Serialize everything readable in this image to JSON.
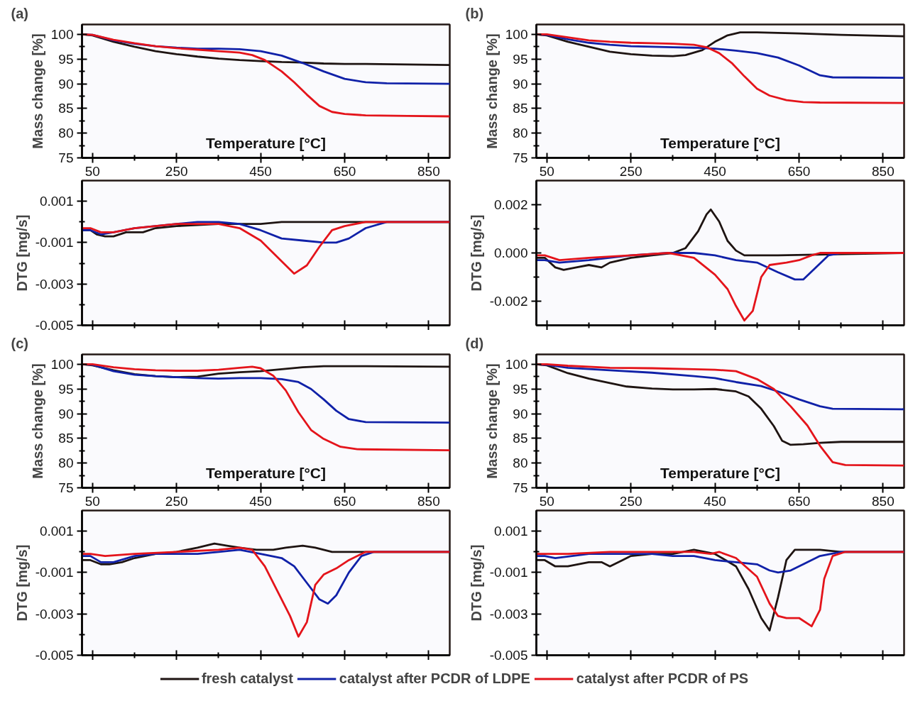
{
  "chart_data": [
    {
      "type": "line",
      "title": "(a)",
      "xlabel": "Temperature [°C]",
      "ylabel": "Mass change [%]",
      "xlim": [
        25,
        900
      ],
      "xticks": [
        50,
        {
          "value": 150,
          "label": null
        },
        250,
        {
          "value": 350,
          "label": null
        },
        450,
        {
          "value": 550,
          "label": null
        },
        650,
        {
          "value": 750,
          "label": null
        },
        850
      ],
      "ylim": [
        75,
        102
      ],
      "yticks": [
        75,
        {
          "value": 77.5,
          "label": null
        },
        80,
        {
          "value": 82.5,
          "label": null
        },
        85,
        {
          "value": 87.5,
          "label": null
        },
        90,
        {
          "value": 92.5,
          "label": null
        },
        95,
        {
          "value": 97.5,
          "label": null
        },
        100
      ],
      "series": [
        {
          "color": "#1e1412",
          "x": [
            25,
            50,
            100,
            150,
            200,
            250,
            300,
            350,
            400,
            450,
            500,
            550,
            600,
            650,
            700,
            800,
            900
          ],
          "values": [
            100,
            99.8,
            98.5,
            97.5,
            96.6,
            96.0,
            95.5,
            95.1,
            94.8,
            94.6,
            94.4,
            94.3,
            94.1,
            94.0,
            94.0,
            93.9,
            93.8
          ]
        },
        {
          "color": "#1021a8",
          "x": [
            25,
            50,
            100,
            150,
            200,
            250,
            300,
            350,
            400,
            450,
            500,
            550,
            600,
            650,
            700,
            750,
            900
          ],
          "values": [
            100,
            99.9,
            98.8,
            98.1,
            97.6,
            97.3,
            97.1,
            97.1,
            97.0,
            96.6,
            95.7,
            94.2,
            92.5,
            91.0,
            90.3,
            90.1,
            90.0
          ]
        },
        {
          "color": "#e4141b",
          "x": [
            25,
            50,
            100,
            150,
            200,
            250,
            300,
            350,
            400,
            430,
            460,
            500,
            530,
            560,
            590,
            620,
            650,
            700,
            800,
            900
          ],
          "values": [
            100,
            99.9,
            98.9,
            98.2,
            97.6,
            97.2,
            96.9,
            96.6,
            96.3,
            95.8,
            94.8,
            92.5,
            90.3,
            87.8,
            85.5,
            84.3,
            83.9,
            83.6,
            83.5,
            83.4
          ]
        }
      ]
    },
    {
      "type": "line",
      "ylabel": "DTG [mg/s]",
      "tick_labels": "y",
      "xlim": [
        25,
        900
      ],
      "xticks": [
        50,
        {
          "value": 150,
          "label": null
        },
        250,
        {
          "value": 350,
          "label": null
        },
        450,
        {
          "value": 550,
          "label": null
        },
        650,
        {
          "value": 750,
          "label": null
        },
        850
      ],
      "ylim": [
        -0.005,
        0.002
      ],
      "yticks": [
        -0.005,
        {
          "value": -0.004,
          "label": null
        },
        -0.003,
        {
          "value": -0.002,
          "label": null
        },
        -0.001,
        {
          "value": 0,
          "label": null
        },
        0.001
      ],
      "series": [
        {
          "color": "#1e1412",
          "x": [
            25,
            45,
            60,
            80,
            100,
            130,
            170,
            200,
            250,
            300,
            350,
            400,
            450,
            500,
            600,
            900
          ],
          "values": [
            -0.0004,
            -0.0004,
            -0.0006,
            -0.0007,
            -0.0007,
            -0.0005,
            -0.0005,
            -0.0003,
            -0.0002,
            -0.00015,
            -0.0001,
            -0.0001,
            -0.0001,
            0,
            0,
            0
          ]
        },
        {
          "color": "#1021a8",
          "x": [
            25,
            45,
            70,
            100,
            150,
            200,
            250,
            300,
            350,
            400,
            450,
            500,
            550,
            600,
            630,
            660,
            700,
            750,
            900
          ],
          "values": [
            -0.0004,
            -0.0004,
            -0.0006,
            -0.0005,
            -0.0003,
            -0.0002,
            -0.0001,
            0,
            0,
            -0.0001,
            -0.0004,
            -0.0008,
            -0.0009,
            -0.001,
            -0.001,
            -0.0008,
            -0.0003,
            0,
            0
          ]
        },
        {
          "color": "#e4141b",
          "x": [
            25,
            45,
            70,
            100,
            150,
            200,
            250,
            300,
            350,
            400,
            450,
            500,
            530,
            560,
            590,
            620,
            650,
            700,
            900
          ],
          "values": [
            -0.0003,
            -0.0003,
            -0.0005,
            -0.0005,
            -0.0003,
            -0.0002,
            -0.0001,
            -0.0001,
            -0.0001,
            -0.0003,
            -0.0009,
            -0.0019,
            -0.0025,
            -0.0021,
            -0.0012,
            -0.0004,
            -0.0002,
            0,
            0
          ]
        }
      ]
    },
    {
      "type": "line",
      "title": "(b)",
      "xlabel": "Temperature [°C]",
      "ylabel": "Mass change [%]",
      "xlim": [
        25,
        900
      ],
      "xticks": [
        50,
        {
          "value": 150,
          "label": null
        },
        250,
        {
          "value": 350,
          "label": null
        },
        450,
        {
          "value": 550,
          "label": null
        },
        650,
        {
          "value": 750,
          "label": null
        },
        850
      ],
      "ylim": [
        75,
        102
      ],
      "yticks": [
        75,
        {
          "value": 77.5,
          "label": null
        },
        80,
        {
          "value": 82.5,
          "label": null
        },
        85,
        {
          "value": 87.5,
          "label": null
        },
        90,
        {
          "value": 92.5,
          "label": null
        },
        95,
        {
          "value": 97.5,
          "label": null
        },
        100
      ],
      "series": [
        {
          "color": "#1e1412",
          "x": [
            25,
            50,
            100,
            150,
            200,
            250,
            300,
            350,
            380,
            420,
            450,
            480,
            510,
            550,
            650,
            750,
            900
          ],
          "values": [
            100,
            99.8,
            98.5,
            97.5,
            96.5,
            96.0,
            95.7,
            95.6,
            95.8,
            96.8,
            98.5,
            99.8,
            100.4,
            100.4,
            100.2,
            99.9,
            99.6
          ]
        },
        {
          "color": "#1021a8",
          "x": [
            25,
            50,
            100,
            150,
            200,
            250,
            300,
            350,
            400,
            450,
            500,
            550,
            600,
            650,
            700,
            730,
            900
          ],
          "values": [
            100,
            99.9,
            99.0,
            98.3,
            97.9,
            97.6,
            97.5,
            97.4,
            97.3,
            97.1,
            96.7,
            96.2,
            95.3,
            93.7,
            91.7,
            91.3,
            91.2
          ]
        },
        {
          "color": "#e4141b",
          "x": [
            25,
            50,
            100,
            150,
            200,
            250,
            300,
            350,
            400,
            430,
            460,
            490,
            520,
            550,
            580,
            620,
            660,
            700,
            900
          ],
          "values": [
            100,
            100,
            99.4,
            98.8,
            98.5,
            98.3,
            98.2,
            98.1,
            97.9,
            97.4,
            96.2,
            94.2,
            91.5,
            89.0,
            87.6,
            86.7,
            86.3,
            86.2,
            86.1
          ]
        }
      ]
    },
    {
      "type": "line",
      "ylabel": "DTG [mg/s]",
      "tick_labels": "y",
      "xlim": [
        25,
        900
      ],
      "xticks": [
        50,
        {
          "value": 150,
          "label": null
        },
        250,
        {
          "value": 350,
          "label": null
        },
        450,
        {
          "value": 550,
          "label": null
        },
        650,
        {
          "value": 750,
          "label": null
        },
        850
      ],
      "ylim": [
        -0.003,
        0.003
      ],
      "yticks": [
        -0.002,
        {
          "value": -0.001,
          "label": null
        },
        {
          "value": 0,
          "label": "0.000"
        },
        {
          "value": 0.001,
          "label": null
        },
        0.002
      ],
      "series": [
        {
          "color": "#1e1412",
          "x": [
            25,
            45,
            70,
            90,
            120,
            150,
            180,
            200,
            250,
            300,
            350,
            380,
            410,
            430,
            440,
            460,
            480,
            500,
            520,
            600,
            900
          ],
          "values": [
            -0.0002,
            -0.0002,
            -0.0006,
            -0.0007,
            -0.0006,
            -0.0005,
            -0.0006,
            -0.0004,
            -0.0002,
            -0.0001,
            0,
            0.0002,
            0.0009,
            0.0016,
            0.0018,
            0.0013,
            0.0005,
            0.0001,
            -0.0001,
            -0.0001,
            0
          ]
        },
        {
          "color": "#1021a8",
          "x": [
            25,
            45,
            80,
            150,
            250,
            340,
            400,
            450,
            500,
            550,
            600,
            640,
            660,
            690,
            720,
            750,
            900
          ],
          "values": [
            -0.0003,
            -0.0003,
            -0.0004,
            -0.0003,
            -0.0001,
            0,
            0,
            -0.0001,
            -0.0003,
            -0.0004,
            -0.0008,
            -0.0011,
            -0.0011,
            -0.0006,
            -0.0001,
            0,
            0
          ]
        },
        {
          "color": "#e4141b",
          "x": [
            25,
            45,
            80,
            150,
            250,
            340,
            400,
            450,
            480,
            500,
            520,
            540,
            560,
            580,
            620,
            650,
            680,
            700,
            900
          ],
          "values": [
            -0.0001,
            -0.0001,
            -0.0003,
            -0.0002,
            -0.0001,
            0,
            -0.0002,
            -0.0009,
            -0.0015,
            -0.0022,
            -0.0028,
            -0.0024,
            -0.001,
            -0.0005,
            -0.0004,
            -0.0003,
            -0.0001,
            0,
            0
          ]
        }
      ]
    },
    {
      "type": "line",
      "title": "(c)",
      "xlabel": "Temperature [°C]",
      "ylabel": "Mass change [%]",
      "xlim": [
        25,
        900
      ],
      "xticks": [
        50,
        {
          "value": 150,
          "label": null
        },
        250,
        {
          "value": 350,
          "label": null
        },
        450,
        {
          "value": 550,
          "label": null
        },
        650,
        {
          "value": 750,
          "label": null
        },
        850
      ],
      "ylim": [
        75,
        102
      ],
      "yticks": [
        75,
        {
          "value": 77.5,
          "label": null
        },
        80,
        {
          "value": 82.5,
          "label": null
        },
        85,
        {
          "value": 87.5,
          "label": null
        },
        90,
        {
          "value": 92.5,
          "label": null
        },
        95,
        {
          "value": 97.5,
          "label": null
        },
        100
      ],
      "series": [
        {
          "color": "#1e1412",
          "x": [
            25,
            50,
            100,
            150,
            200,
            250,
            300,
            350,
            400,
            450,
            500,
            550,
            600,
            700,
            900
          ],
          "values": [
            100,
            99.8,
            98.8,
            98.0,
            97.6,
            97.4,
            97.5,
            98.1,
            98.4,
            98.6,
            99.0,
            99.4,
            99.6,
            99.6,
            99.5
          ]
        },
        {
          "color": "#1021a8",
          "x": [
            25,
            50,
            100,
            150,
            200,
            250,
            300,
            350,
            400,
            450,
            500,
            540,
            570,
            600,
            630,
            660,
            700,
            900
          ],
          "values": [
            100,
            99.9,
            98.6,
            97.9,
            97.6,
            97.4,
            97.2,
            97.1,
            97.2,
            97.2,
            97.0,
            96.4,
            95.0,
            92.9,
            90.6,
            88.9,
            88.3,
            88.2
          ]
        },
        {
          "color": "#e4141b",
          "x": [
            25,
            50,
            100,
            150,
            200,
            250,
            300,
            350,
            400,
            430,
            450,
            480,
            510,
            540,
            570,
            600,
            640,
            680,
            900
          ],
          "values": [
            100,
            100,
            99.4,
            99.0,
            98.8,
            98.7,
            98.7,
            98.9,
            99.3,
            99.5,
            99.2,
            97.7,
            94.7,
            90.3,
            86.7,
            84.9,
            83.3,
            82.8,
            82.6
          ]
        }
      ]
    },
    {
      "type": "line",
      "ylabel": "DTG [mg/s]",
      "tick_labels": "y",
      "xlim": [
        25,
        900
      ],
      "xticks": [
        50,
        {
          "value": 150,
          "label": null
        },
        250,
        {
          "value": 350,
          "label": null
        },
        450,
        {
          "value": 550,
          "label": null
        },
        650,
        {
          "value": 750,
          "label": null
        },
        850
      ],
      "ylim": [
        -0.005,
        0.002
      ],
      "yticks": [
        -0.005,
        {
          "value": -0.004,
          "label": null
        },
        -0.003,
        {
          "value": -0.002,
          "label": null
        },
        -0.001,
        {
          "value": 0,
          "label": null
        },
        0.001
      ],
      "series": [
        {
          "color": "#1e1412",
          "x": [
            25,
            45,
            70,
            90,
            120,
            150,
            200,
            250,
            300,
            340,
            370,
            400,
            440,
            480,
            510,
            550,
            580,
            620,
            700,
            900
          ],
          "values": [
            -0.0004,
            -0.0004,
            -0.0006,
            -0.0006,
            -0.0005,
            -0.0003,
            -0.0001,
            0,
            0.0002,
            0.0004,
            0.0003,
            0.0002,
            0.0001,
            0.0001,
            0.0002,
            0.0003,
            0.0002,
            0,
            0,
            0
          ]
        },
        {
          "color": "#1021a8",
          "x": [
            25,
            45,
            70,
            100,
            150,
            200,
            300,
            350,
            400,
            450,
            500,
            530,
            560,
            590,
            610,
            630,
            660,
            690,
            720,
            900
          ],
          "values": [
            -0.0002,
            -0.0002,
            -0.0005,
            -0.0005,
            -0.0002,
            -0.0001,
            -0.0001,
            0,
            0.0001,
            -0.0001,
            -0.0003,
            -0.0007,
            -0.0015,
            -0.0023,
            -0.0025,
            -0.0021,
            -0.001,
            -0.0002,
            0,
            0
          ]
        },
        {
          "color": "#e4141b",
          "x": [
            25,
            45,
            80,
            150,
            250,
            350,
            400,
            430,
            460,
            490,
            520,
            540,
            560,
            580,
            600,
            630,
            660,
            700,
            900
          ],
          "values": [
            -0.0001,
            -0.0001,
            -0.0002,
            -0.0001,
            0,
            0.0001,
            0.0002,
            0.0001,
            -0.0007,
            -0.0019,
            -0.0031,
            -0.0041,
            -0.0034,
            -0.0016,
            -0.0011,
            -0.0008,
            -0.0004,
            0,
            0
          ]
        }
      ]
    },
    {
      "type": "line",
      "title": "(d)",
      "xlabel": "Temperature [°C]",
      "ylabel": "Mass change [%]",
      "xlim": [
        25,
        900
      ],
      "xticks": [
        50,
        {
          "value": 150,
          "label": null
        },
        250,
        {
          "value": 350,
          "label": null
        },
        450,
        {
          "value": 550,
          "label": null
        },
        650,
        {
          "value": 750,
          "label": null
        },
        850
      ],
      "ylim": [
        75,
        102
      ],
      "yticks": [
        75,
        {
          "value": 77.5,
          "label": null
        },
        80,
        {
          "value": 82.5,
          "label": null
        },
        85,
        {
          "value": 87.5,
          "label": null
        },
        90,
        {
          "value": 92.5,
          "label": null
        },
        95,
        {
          "value": 97.5,
          "label": null
        },
        100
      ],
      "series": [
        {
          "color": "#1e1412",
          "x": [
            25,
            50,
            100,
            150,
            200,
            240,
            300,
            350,
            400,
            450,
            500,
            530,
            560,
            590,
            610,
            630,
            660,
            700,
            750,
            900
          ],
          "values": [
            100,
            99.8,
            98.2,
            97.1,
            96.2,
            95.5,
            95.1,
            94.9,
            94.9,
            95.0,
            94.5,
            93.5,
            91.0,
            87.5,
            84.5,
            83.7,
            83.8,
            84.1,
            84.3,
            84.3
          ]
        },
        {
          "color": "#1021a8",
          "x": [
            25,
            50,
            100,
            200,
            300,
            400,
            450,
            500,
            560,
            600,
            650,
            700,
            730,
            900
          ],
          "values": [
            100,
            99.9,
            99.3,
            98.8,
            98.3,
            97.6,
            97.2,
            96.4,
            95.6,
            94.5,
            92.9,
            91.5,
            91.0,
            90.9
          ]
        },
        {
          "color": "#e4141b",
          "x": [
            25,
            50,
            100,
            200,
            300,
            400,
            450,
            500,
            550,
            590,
            630,
            670,
            700,
            730,
            760,
            900
          ],
          "values": [
            100,
            100,
            99.7,
            99.3,
            99.2,
            99.0,
            98.9,
            98.6,
            97.0,
            95.0,
            91.5,
            87.6,
            83.5,
            80.2,
            79.6,
            79.5
          ]
        }
      ]
    },
    {
      "type": "line",
      "ylabel": "DTG [mg/s]",
      "tick_labels": "y",
      "legend": "bottom",
      "xlim": [
        25,
        900
      ],
      "xticks": [
        50,
        {
          "value": 150,
          "label": null
        },
        250,
        {
          "value": 350,
          "label": null
        },
        450,
        {
          "value": 550,
          "label": null
        },
        650,
        {
          "value": 750,
          "label": null
        },
        850
      ],
      "ylim": [
        -0.005,
        0.002
      ],
      "yticks": [
        -0.005,
        {
          "value": -0.004,
          "label": null
        },
        -0.003,
        {
          "value": -0.002,
          "label": null
        },
        -0.001,
        {
          "value": 0,
          "label": null
        },
        0.001
      ],
      "series": [
        {
          "name": "fresh catalyst",
          "color": "#1e1412",
          "x": [
            25,
            45,
            70,
            100,
            150,
            180,
            200,
            230,
            250,
            300,
            350,
            400,
            450,
            500,
            530,
            560,
            580,
            600,
            620,
            640,
            700,
            750,
            900
          ],
          "values": [
            -0.0004,
            -0.0004,
            -0.0007,
            -0.0007,
            -0.0005,
            -0.0005,
            -0.0007,
            -0.0004,
            -0.0002,
            -0.0001,
            -0.0001,
            0.0001,
            -0.0001,
            -0.0007,
            -0.0018,
            -0.0032,
            -0.0038,
            -0.0022,
            -0.0004,
            0.0001,
            0.0001,
            0,
            0
          ]
        },
        {
          "name": "catalyst after PCDR of LDPE",
          "color": "#1021a8",
          "x": [
            25,
            45,
            70,
            150,
            300,
            350,
            400,
            450,
            500,
            550,
            580,
            600,
            630,
            660,
            700,
            750,
            900
          ],
          "values": [
            -0.0002,
            -0.0002,
            -0.0003,
            -0.0001,
            -0.0001,
            -0.0002,
            -0.0002,
            -0.0004,
            -0.0005,
            -0.0006,
            -0.0009,
            -0.001,
            -0.0009,
            -0.0006,
            -0.0002,
            0,
            0
          ]
        },
        {
          "name": "catalyst after PCDR of PS",
          "color": "#e4141b",
          "x": [
            25,
            45,
            100,
            200,
            400,
            440,
            460,
            500,
            550,
            580,
            600,
            620,
            650,
            680,
            700,
            710,
            730,
            760,
            900
          ],
          "values": [
            -0.0001,
            -0.0001,
            -0.0001,
            0,
            0,
            -0.0001,
            0,
            -0.0003,
            -0.0012,
            -0.0025,
            -0.0031,
            -0.0032,
            -0.0032,
            -0.0036,
            -0.0028,
            -0.0013,
            -0.0002,
            0,
            0
          ]
        }
      ]
    }
  ]
}
